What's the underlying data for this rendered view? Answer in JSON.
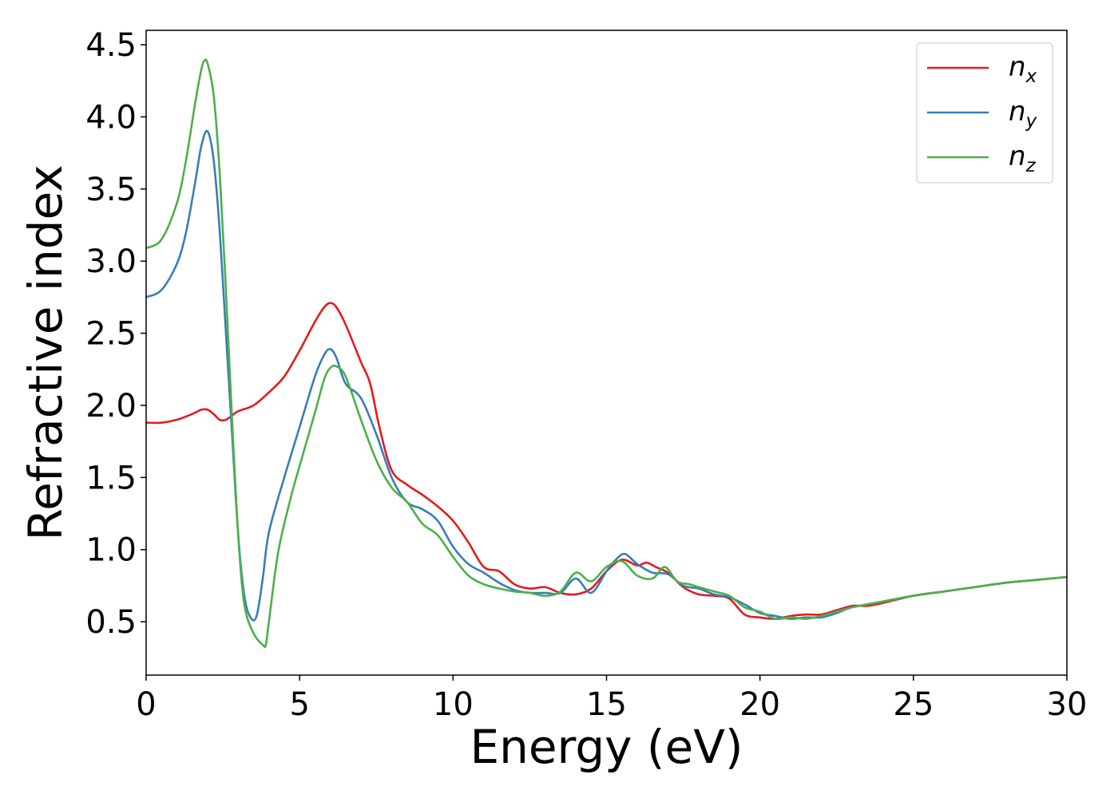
{
  "chart_data": {
    "type": "line",
    "title": "",
    "xlabel": "Energy (eV)",
    "ylabel": "Refractive index",
    "xlim": [
      0,
      30
    ],
    "ylim": [
      0.13,
      4.6
    ],
    "grid": false,
    "legend_position": "top-right",
    "xticks": [
      "0",
      "5",
      "10",
      "15",
      "20",
      "25",
      "30"
    ],
    "yticks": [
      "0.5",
      "1.0",
      "1.5",
      "2.0",
      "2.5",
      "3.0",
      "3.5",
      "4.0",
      "4.5"
    ],
    "series": [
      {
        "name": "n_x",
        "label_base": "n",
        "label_sub": "x",
        "color": "#e41a1c",
        "x": [
          0,
          0.5,
          1.0,
          1.5,
          1.8,
          2.0,
          2.2,
          2.4,
          2.6,
          2.8,
          3.0,
          3.5,
          4.0,
          4.5,
          5.0,
          5.5,
          5.8,
          6.0,
          6.2,
          6.5,
          7.0,
          7.3,
          7.6,
          8.0,
          8.5,
          9.0,
          9.5,
          10.0,
          10.5,
          11.0,
          11.5,
          12.0,
          12.5,
          13.0,
          13.5,
          14.0,
          14.5,
          15.0,
          15.5,
          16.0,
          16.3,
          16.6,
          17.0,
          17.5,
          18.0,
          18.5,
          19.0,
          19.5,
          20.0,
          20.5,
          21.0,
          21.5,
          22.0,
          22.5,
          23.0,
          23.5,
          24.0,
          25.0,
          26.0,
          27.0,
          28.0,
          29.0,
          30.0
        ],
        "y": [
          1.88,
          1.88,
          1.9,
          1.94,
          1.97,
          1.97,
          1.94,
          1.9,
          1.9,
          1.93,
          1.96,
          2.0,
          2.09,
          2.2,
          2.38,
          2.58,
          2.68,
          2.71,
          2.68,
          2.56,
          2.3,
          2.15,
          1.85,
          1.55,
          1.45,
          1.38,
          1.3,
          1.2,
          1.05,
          0.88,
          0.85,
          0.76,
          0.73,
          0.74,
          0.7,
          0.69,
          0.73,
          0.85,
          0.93,
          0.89,
          0.91,
          0.88,
          0.84,
          0.74,
          0.69,
          0.68,
          0.66,
          0.55,
          0.53,
          0.52,
          0.54,
          0.55,
          0.55,
          0.58,
          0.61,
          0.61,
          0.63,
          0.68,
          0.71,
          0.74,
          0.77,
          0.79,
          0.81
        ]
      },
      {
        "name": "n_y",
        "label_base": "n",
        "label_sub": "y",
        "color": "#377eb8",
        "x": [
          0,
          0.5,
          1.0,
          1.3,
          1.6,
          1.8,
          2.0,
          2.2,
          2.4,
          2.6,
          2.8,
          3.0,
          3.2,
          3.4,
          3.6,
          3.8,
          4.0,
          4.5,
          5.0,
          5.5,
          5.8,
          6.0,
          6.2,
          6.5,
          7.0,
          7.5,
          8.0,
          8.5,
          9.0,
          9.5,
          10.0,
          10.5,
          11.0,
          11.5,
          12.0,
          12.5,
          13.0,
          13.5,
          14.0,
          14.5,
          15.0,
          15.3,
          15.6,
          16.0,
          16.5,
          17.0,
          17.5,
          18.0,
          18.5,
          19.0,
          19.5,
          20.0,
          20.5,
          21.0,
          21.5,
          22.0,
          22.5,
          23.0,
          24.0,
          25.0,
          26.0,
          27.0,
          28.0,
          29.0,
          30.0
        ],
        "y": [
          2.75,
          2.8,
          2.98,
          3.2,
          3.55,
          3.8,
          3.9,
          3.7,
          3.2,
          2.5,
          1.8,
          1.1,
          0.68,
          0.53,
          0.54,
          0.8,
          1.12,
          1.5,
          1.85,
          2.2,
          2.35,
          2.39,
          2.33,
          2.15,
          2.05,
          1.8,
          1.5,
          1.33,
          1.28,
          1.2,
          1.02,
          0.9,
          0.84,
          0.77,
          0.72,
          0.7,
          0.7,
          0.7,
          0.8,
          0.7,
          0.85,
          0.93,
          0.97,
          0.9,
          0.84,
          0.83,
          0.75,
          0.73,
          0.69,
          0.67,
          0.62,
          0.56,
          0.54,
          0.52,
          0.53,
          0.53,
          0.56,
          0.6,
          0.64,
          0.68,
          0.71,
          0.74,
          0.77,
          0.79,
          0.81
        ]
      },
      {
        "name": "n_z",
        "label_base": "n",
        "label_sub": "z",
        "color": "#4daf4a",
        "x": [
          0,
          0.5,
          1.0,
          1.3,
          1.6,
          1.8,
          1.9,
          2.0,
          2.2,
          2.4,
          2.6,
          2.8,
          3.0,
          3.2,
          3.5,
          3.8,
          3.9,
          4.0,
          4.3,
          4.7,
          5.0,
          5.5,
          5.8,
          6.0,
          6.2,
          6.5,
          7.0,
          7.5,
          8.0,
          8.5,
          9.0,
          9.5,
          10.0,
          10.5,
          11.0,
          11.5,
          12.0,
          12.5,
          13.0,
          13.5,
          14.0,
          14.5,
          15.0,
          15.5,
          16.0,
          16.5,
          16.9,
          17.3,
          17.7,
          18.0,
          18.5,
          19.0,
          19.5,
          20.0,
          20.5,
          21.0,
          21.5,
          22.0,
          22.5,
          23.0,
          24.0,
          25.0,
          26.0,
          27.0,
          28.0,
          29.0,
          30.0
        ],
        "y": [
          3.09,
          3.15,
          3.4,
          3.7,
          4.1,
          4.33,
          4.39,
          4.37,
          4.15,
          3.6,
          2.8,
          1.9,
          1.1,
          0.62,
          0.42,
          0.34,
          0.34,
          0.5,
          0.98,
          1.35,
          1.58,
          1.95,
          2.18,
          2.26,
          2.27,
          2.2,
          1.9,
          1.62,
          1.43,
          1.33,
          1.18,
          1.1,
          0.95,
          0.82,
          0.76,
          0.73,
          0.71,
          0.7,
          0.68,
          0.71,
          0.84,
          0.78,
          0.88,
          0.92,
          0.82,
          0.8,
          0.88,
          0.78,
          0.76,
          0.74,
          0.71,
          0.68,
          0.6,
          0.57,
          0.52,
          0.53,
          0.52,
          0.54,
          0.57,
          0.6,
          0.64,
          0.68,
          0.71,
          0.74,
          0.77,
          0.79,
          0.81
        ]
      }
    ]
  }
}
